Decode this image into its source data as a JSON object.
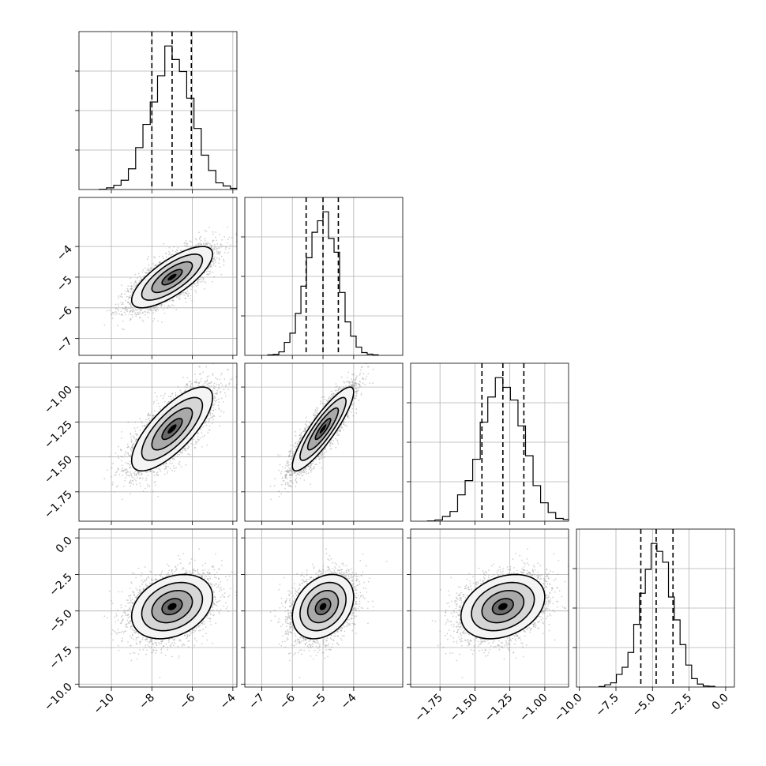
{
  "chart_data": {
    "type": "corner",
    "title": "",
    "parameters": [
      {
        "label": "",
        "lim": [
          -11.6,
          -3.8
        ],
        "mean": -7.0,
        "std": 1.0,
        "quantiles": [
          -8.0,
          -7.0,
          -6.05
        ],
        "ticks": [
          -10,
          -8,
          -6,
          -4
        ],
        "tick_labels": [
          "−10",
          "−8",
          "−6",
          "−4"
        ]
      },
      {
        "label": "",
        "lim": [
          -7.55,
          -2.4
        ],
        "mean": -5.0,
        "std": 0.5,
        "quantiles": [
          -5.55,
          -5.0,
          -4.5
        ],
        "ticks": [
          -7,
          -6,
          -5,
          -4
        ],
        "tick_labels": [
          "−7",
          "−6",
          "−5",
          "−4"
        ]
      },
      {
        "label": "",
        "lim": [
          -1.96,
          -0.83
        ],
        "mean": -1.3,
        "std": 0.15,
        "quantiles": [
          -1.45,
          -1.3,
          -1.15
        ],
        "ticks": [
          -1.75,
          -1.5,
          -1.25,
          -1.0
        ],
        "tick_labels": [
          "−1.75",
          "−1.50",
          "−1.25",
          "−1.00"
        ]
      },
      {
        "label": "",
        "lim": [
          -10.2,
          0.6
        ],
        "mean": -4.7,
        "std": 1.1,
        "quantiles": [
          -5.8,
          -4.75,
          -3.6
        ],
        "ticks": [
          -10.0,
          -7.5,
          -5.0,
          -2.5,
          0.0
        ],
        "tick_labels": [
          "−10.0",
          "−7.5",
          "−5.0",
          "−2.5",
          "0.0"
        ]
      }
    ],
    "correlations": [
      [
        1.0,
        0.75,
        0.75,
        0.3
      ],
      [
        0.75,
        1.0,
        0.88,
        0.3
      ],
      [
        0.75,
        0.88,
        1.0,
        0.3
      ],
      [
        0.3,
        0.3,
        0.3,
        1.0
      ]
    ],
    "histogram_bins": 20,
    "contour_levels_sigma": [
      0.5,
      1.0,
      1.5,
      2.0
    ],
    "scatter_samples": 4000,
    "grid": true,
    "colors": {
      "line": "#000000",
      "points": "#9a9a9a",
      "grid": "#b0b0b0",
      "density_dark": "#000000"
    }
  }
}
